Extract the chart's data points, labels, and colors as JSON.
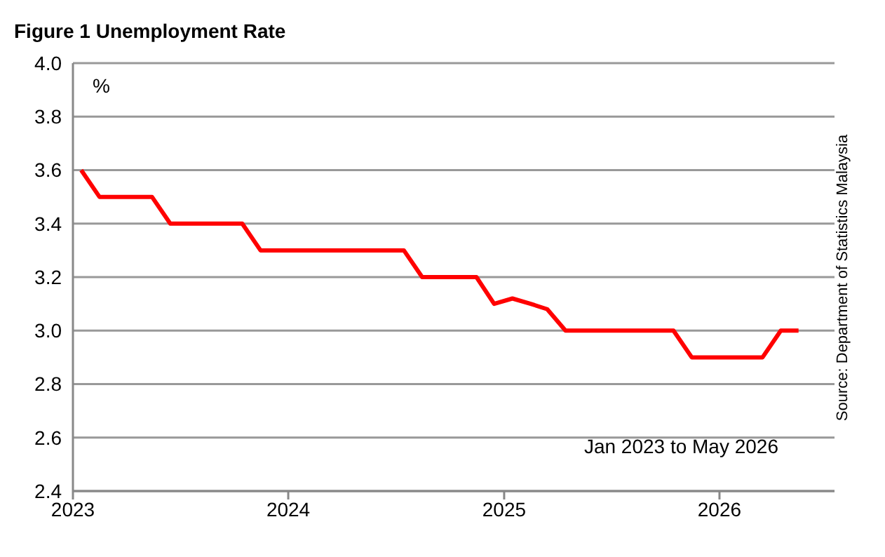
{
  "chart_data": {
    "type": "line",
    "title": "Figure 1 Unemployment Rate",
    "x": [
      "2023-01-15",
      "2023-02-15",
      "2023-03-15",
      "2023-04-15",
      "2023-05-15",
      "2023-06-15",
      "2023-07-15",
      "2023-08-15",
      "2023-09-15",
      "2023-10-15",
      "2023-11-15",
      "2023-12-15",
      "2024-01-15",
      "2024-02-15",
      "2024-03-15",
      "2024-04-15",
      "2024-05-15",
      "2024-06-15",
      "2024-07-15",
      "2024-08-15",
      "2024-09-15",
      "2024-10-15",
      "2024-11-15",
      "2024-12-15",
      "2025-01-15",
      "2025-02-15",
      "2025-03-15",
      "2025-04-15",
      "2025-05-15",
      "2025-06-15",
      "2025-07-15",
      "2025-08-15",
      "2025-09-15",
      "2025-10-15",
      "2025-11-15",
      "2025-12-15",
      "2026-01-15",
      "2026-02-15",
      "2026-03-15",
      "2026-04-15",
      "2026-05-15"
    ],
    "series": [
      {
        "color": "#ff0000",
        "values": [
          3.6,
          3.5,
          3.5,
          3.5,
          3.5,
          3.4,
          3.4,
          3.4,
          3.4,
          3.4,
          3.3,
          3.3,
          3.3,
          3.3,
          3.3,
          3.3,
          3.3,
          3.3,
          3.3,
          3.2,
          3.2,
          3.2,
          3.2,
          3.1,
          3.12,
          3.1,
          3.08,
          3.0,
          3.0,
          3.0,
          3.0,
          3.0,
          3.0,
          3.0,
          2.9,
          2.9,
          2.9,
          2.9,
          2.9,
          3.0,
          3.0
        ]
      }
    ],
    "xlim": [
      "2023-01-01",
      "2026-07-15"
    ],
    "xticks": [
      {
        "value": "2023-01-01",
        "label": "2023"
      },
      {
        "value": "2024-01-01",
        "label": "2024"
      },
      {
        "value": "2025-01-01",
        "label": "2025"
      },
      {
        "value": "2026-01-01",
        "label": "2026"
      }
    ],
    "ylim": [
      2.4,
      4.0
    ],
    "yticks": [
      {
        "value": 2.4,
        "label": "2.4"
      },
      {
        "value": 2.6,
        "label": "2.6"
      },
      {
        "value": 2.8,
        "label": "2.8"
      },
      {
        "value": 3.0,
        "label": "3.0"
      },
      {
        "value": 3.2,
        "label": "3.2"
      },
      {
        "value": 3.4,
        "label": "3.4"
      },
      {
        "value": 3.6,
        "label": "3.6"
      },
      {
        "value": 3.8,
        "label": "3.8"
      },
      {
        "value": 4.0,
        "label": "4.0"
      }
    ],
    "grid": "y",
    "legend": false,
    "marker": "none",
    "line_style": "solid",
    "annotations": [
      "%",
      "Jan 2023 to May 2026",
      "Source: Department of Statistics Malaysia"
    ]
  }
}
